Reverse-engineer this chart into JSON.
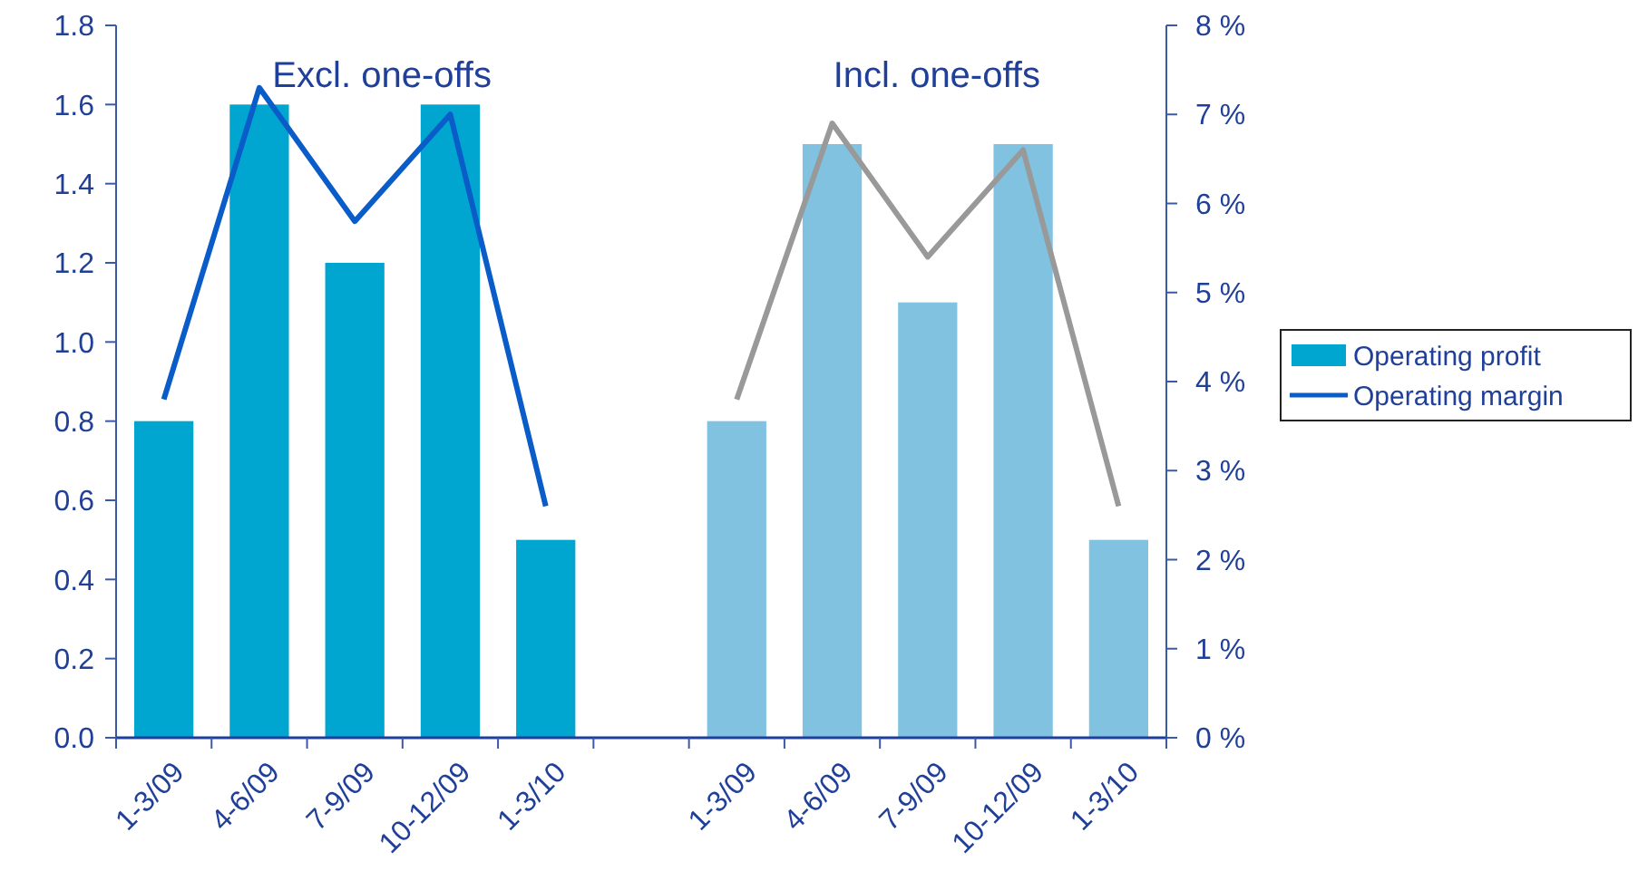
{
  "chart_data": {
    "type": "bar",
    "categories": [
      "1-3/09",
      "4-6/09",
      "7-9/09",
      "10-12/09",
      "1-3/10",
      null,
      "1-3/09",
      "4-6/09",
      "7-9/09",
      "10-12/09",
      "1-3/10"
    ],
    "series": [
      {
        "name": "Operating profit",
        "color": "#00a6cf",
        "values": [
          0.8,
          1.6,
          1.2,
          1.6,
          0.5,
          null,
          null,
          null,
          null,
          null,
          null
        ]
      },
      {
        "color": "#80c2e0",
        "values": [
          null,
          null,
          null,
          null,
          null,
          null,
          0.8,
          1.5,
          1.1,
          1.5,
          0.5
        ]
      },
      {
        "name": "Operating margin",
        "type": "line",
        "axis": "y2",
        "color": "#0a5cc8",
        "values": [
          3.8,
          7.3,
          5.8,
          7.0,
          2.6,
          null,
          null,
          null,
          null,
          null,
          null
        ]
      },
      {
        "type": "line",
        "axis": "y2",
        "color": "#999999",
        "values": [
          null,
          null,
          null,
          null,
          null,
          null,
          3.8,
          6.9,
          5.4,
          6.6,
          2.6
        ]
      }
    ],
    "annotations": [
      "Excl. one-offs",
      "Incl. one-offs"
    ],
    "ylim": [
      0,
      1.8
    ],
    "yticks": [
      {
        "value": 0,
        "label": "0.0"
      },
      0.2,
      0.4,
      0.6,
      0.8,
      {
        "value": 1,
        "label": "1.0"
      },
      1.2,
      1.4,
      1.6,
      1.8
    ],
    "y2lim": [
      0,
      8
    ],
    "y2ticks": [
      {
        "value": 0,
        "label": "0 %"
      },
      {
        "value": 1,
        "label": "1 %"
      },
      {
        "value": 2,
        "label": "2 %"
      },
      {
        "value": 3,
        "label": "3 %"
      },
      {
        "value": 4,
        "label": "4 %"
      },
      {
        "value": 5,
        "label": "5 %"
      },
      {
        "value": 6,
        "label": "6 %"
      },
      {
        "value": 7,
        "label": "7 %"
      },
      {
        "value": 8,
        "label": "8 %"
      }
    ],
    "grid": false,
    "legend": "right",
    "marker": "none",
    "line_style": "solid"
  }
}
